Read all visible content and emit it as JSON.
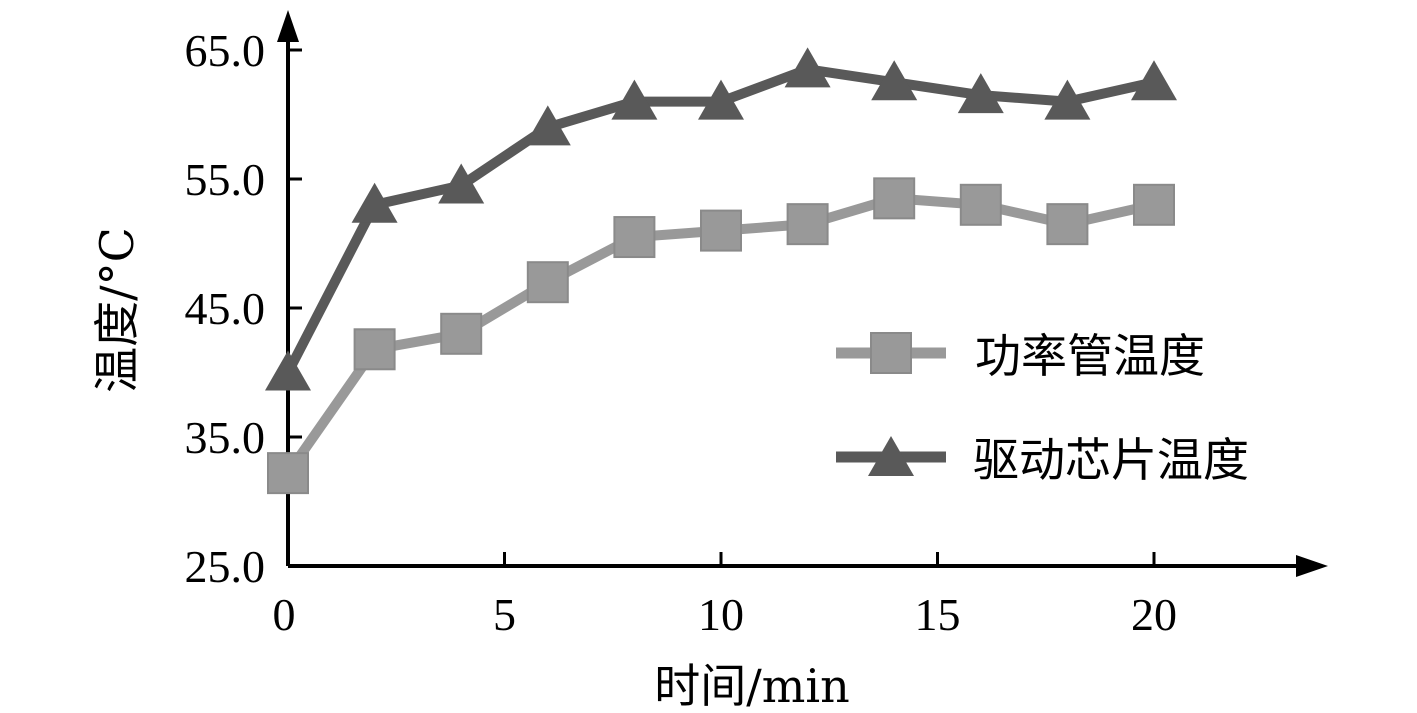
{
  "chart_data": {
    "type": "line",
    "xlabel": "时间/min",
    "ylabel": "温度/°C",
    "xlim": [
      0,
      24
    ],
    "ylim": [
      25,
      67
    ],
    "x_ticks": [
      0,
      5,
      10,
      15,
      20
    ],
    "x_tick_labels": [
      "0",
      "5",
      "10",
      "15",
      "20"
    ],
    "y_ticks": [
      25,
      35,
      45,
      55,
      65
    ],
    "y_tick_labels": [
      "25.0",
      "35.0",
      "45.0",
      "55.0",
      "65.0"
    ],
    "grid": false,
    "legend_position": "right",
    "x": [
      0,
      2,
      4,
      6,
      8,
      10,
      12,
      14,
      16,
      18,
      20
    ],
    "series": [
      {
        "name": "功率管温度",
        "marker": "square",
        "color": "#999999",
        "values": [
          32.2,
          41.8,
          43.0,
          47.0,
          50.5,
          51.0,
          51.5,
          53.5,
          53.0,
          51.5,
          53.0
        ]
      },
      {
        "name": "驱动芯片温度",
        "marker": "triangle",
        "color": "#595959",
        "values": [
          40.0,
          53.0,
          54.5,
          59.0,
          61.0,
          61.0,
          63.5,
          62.5,
          61.5,
          61.0,
          62.5
        ]
      }
    ]
  }
}
